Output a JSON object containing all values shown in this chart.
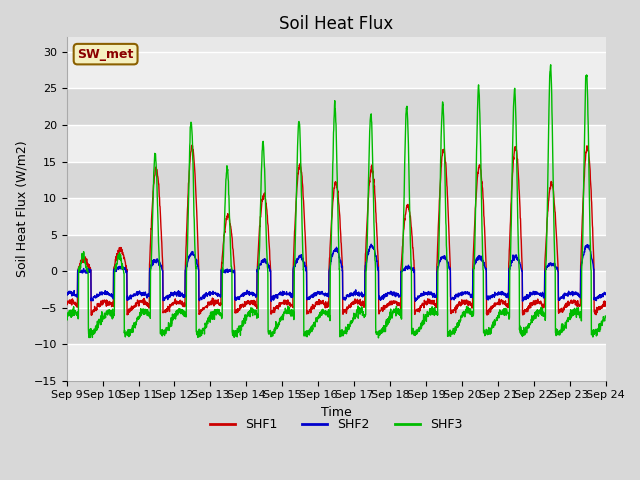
{
  "title": "Soil Heat Flux",
  "ylabel": "Soil Heat Flux (W/m2)",
  "xlabel": "Time",
  "ylim": [
    -15,
    32
  ],
  "yticks": [
    -15,
    -10,
    -5,
    0,
    5,
    10,
    15,
    20,
    25,
    30
  ],
  "x_labels": [
    "Sep 9",
    "Sep 10",
    "Sep 11",
    "Sep 12",
    "Sep 13",
    "Sep 14",
    "Sep 15",
    "Sep 16",
    "Sep 17",
    "Sep 18",
    "Sep 19",
    "Sep 20",
    "Sep 21",
    "Sep 22",
    "Sep 23",
    "Sep 24"
  ],
  "legend_label": "SW_met",
  "legend_box_facecolor": "#f5f0c0",
  "legend_box_edgecolor": "#8B6000",
  "legend_text_color": "#8B0000",
  "series_labels": [
    "SHF1",
    "SHF2",
    "SHF3"
  ],
  "series_colors": [
    "#cc0000",
    "#0000cc",
    "#00bb00"
  ],
  "background_color": "#d8d8d8",
  "plot_bg_color": "#e8e8e8",
  "band_color_light": "#eeeeee",
  "band_color_dark": "#d8d8d8",
  "title_fontsize": 12,
  "axis_fontsize": 9,
  "tick_fontsize": 8
}
